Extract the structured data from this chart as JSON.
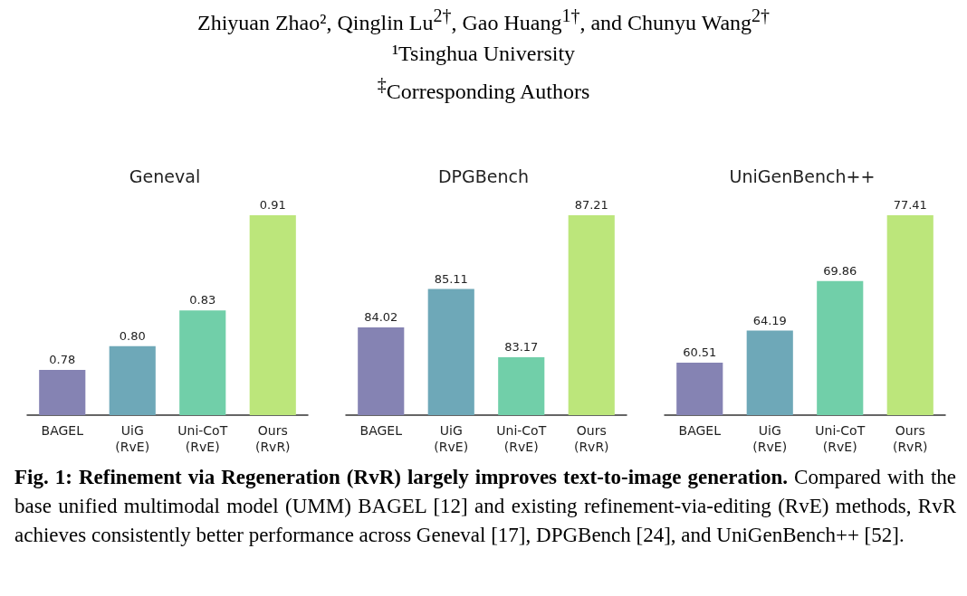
{
  "chart_data": [
    {
      "type": "other",
      "annotations": [
        "Zhiyuan Zhao², Qinglin Lu$^{2†}$, Gao Huang$^{1†}$, and Chunyu Wang$^{2†}$",
        "¹Tsinghua University",
        "$^{‡}$Corresponding Authors"
      ]
    },
    {
      "type": "bar",
      "title": "Geneval",
      "categories": [
        "BAGEL",
        "UiG\n(RvE)",
        "Uni-CoT\n(RvE)",
        "Ours\n(RvR)"
      ],
      "values": [
        0.78,
        0.8,
        0.83,
        0.91
      ],
      "value_labels": [
        "0.78",
        "0.80",
        "0.83",
        "0.91"
      ],
      "colors": [
        "#8583b3",
        "#6ea8b8",
        "#71cfa9",
        "#bce67b"
      ],
      "ylim": [
        0.742,
        0.91
      ],
      "tick_labels": "x",
      "grid": false
    },
    {
      "type": "bar",
      "title": "DPGBench",
      "categories": [
        "BAGEL",
        "UiG\n(RvE)",
        "Uni-CoT\n(RvE)",
        "Ours\n(RvR)"
      ],
      "values": [
        84.02,
        85.11,
        83.17,
        87.21
      ],
      "colors": [
        "#8583b3",
        "#6ea8b8",
        "#71cfa9",
        "#bce67b"
      ],
      "ylim": [
        81.52,
        87.21
      ],
      "data_labels": true,
      "tick_labels": "x",
      "grid": false
    },
    {
      "type": "bar",
      "title": "UniGenBench++",
      "categories": [
        "BAGEL",
        "UiG\n(RvE)",
        "Uni-CoT\n(RvE)",
        "Ours\n(RvR)"
      ],
      "values": [
        60.51,
        64.19,
        69.86,
        77.41
      ],
      "colors": [
        "#8583b3",
        "#6ea8b8",
        "#71cfa9",
        "#bce67b"
      ],
      "ylim": [
        54.5,
        77.41
      ],
      "data_labels": true,
      "tick_labels": "x",
      "grid": false
    },
    {
      "type": "other",
      "title": "Fig. 1: Refinement via Regeneration (RvR) largely improves text-to-image generation.",
      "annotations": [
        "Compared with the base unified multimodal model (UMM) BAGEL [12] and existing refinement-via-editing (RvE) methods, RvR achieves consistently better performance across Geneval [17], DPGBench [24], and UniGenBench++ [52]."
      ]
    }
  ]
}
